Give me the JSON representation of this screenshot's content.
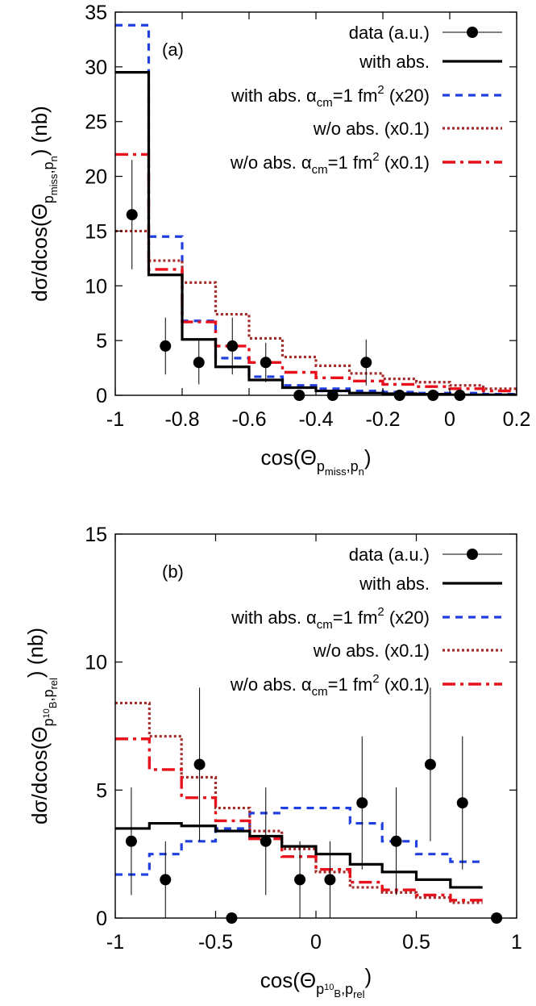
{
  "chart_data": [
    {
      "type": "step-histogram",
      "panel_label": "(a)",
      "xlabel": {
        "main": "cos(Θ",
        "sub": "p",
        "subsub": "miss",
        "sub2": ",p",
        "subsub2": "n",
        "end": ")"
      },
      "ylabel": {
        "main": "dσ/dcos(Θ",
        "sub": "p",
        "subsub": "miss",
        "sub2": ",p",
        "subsub2": "n",
        "end": ") (nb)"
      },
      "xlim": [
        -1,
        0.2
      ],
      "ylim": [
        0,
        35
      ],
      "xticks": [
        "-1",
        "-0.8",
        "-0.6",
        "-0.4",
        "-0.2",
        "0",
        "0.2"
      ],
      "xtick_values": [
        -1,
        -0.8,
        -0.6,
        -0.4,
        -0.2,
        0,
        0.2
      ],
      "yticks": [
        "0",
        "5",
        "10",
        "15",
        "20",
        "25",
        "30",
        "35"
      ],
      "ytick_values": [
        0,
        5,
        10,
        15,
        20,
        25,
        30,
        35
      ],
      "bin_edges": [
        -1,
        -0.9,
        -0.8,
        -0.7,
        -0.6,
        -0.5,
        -0.4,
        -0.3,
        -0.2,
        -0.1,
        0,
        0.1,
        0.2
      ],
      "series": [
        {
          "name": "with abs. α_cm=1 fm^2 (x20)",
          "legend_index": 2,
          "color": "#1f3fe0",
          "dash": "blue-dash",
          "values": [
            33.8,
            14.5,
            6.8,
            3.4,
            1.7,
            0.9,
            0.6,
            0.4,
            0.3,
            0.2,
            0.2,
            0.1
          ]
        },
        {
          "name": "w/o abs. (x0.1)",
          "legend_index": 3,
          "color": "#a52a2a",
          "dash": "brown-dot",
          "values": [
            15.0,
            12.3,
            10.3,
            7.4,
            5.2,
            3.5,
            2.7,
            2.0,
            1.5,
            1.2,
            0.9,
            0.6
          ]
        },
        {
          "name": "w/o abs. α_cm=1 fm^2 (x0.1)",
          "legend_index": 4,
          "color": "#e8101a",
          "dash": "red-dashdot",
          "values": [
            22.0,
            11.5,
            6.7,
            4.5,
            3.0,
            2.1,
            1.6,
            1.3,
            1.0,
            0.8,
            0.6,
            0.4
          ]
        },
        {
          "name": "with abs.",
          "legend_index": 1,
          "color": "#000000",
          "dash": "solid",
          "values": [
            29.5,
            11.0,
            5.1,
            2.6,
            1.4,
            0.7,
            0.4,
            0.2,
            0.15,
            0.1,
            0.05,
            0.05
          ]
        }
      ],
      "data_points": {
        "name": "data (a.u.)",
        "legend_index": 0,
        "x": [
          -0.95,
          -0.85,
          -0.75,
          -0.65,
          -0.55,
          -0.45,
          -0.35,
          -0.25,
          -0.15,
          -0.05,
          0.03
        ],
        "y": [
          16.5,
          4.5,
          3.0,
          4.5,
          3.0,
          0.0,
          0.0,
          3.0,
          0.0,
          0.0,
          0.0
        ],
        "err": [
          5.0,
          2.6,
          2.0,
          2.6,
          1.8,
          0.0,
          0.0,
          2.1,
          0.0,
          0.0,
          0.0
        ]
      },
      "legend_labels": [
        {
          "text": "data (a.u.)"
        },
        {
          "text": "with abs."
        },
        {
          "text": "with abs. α",
          "sub": "cm",
          "rest": "=1 fm",
          "sup": "2",
          "end": " (x20)"
        },
        {
          "text": "w/o abs. (x0.1)"
        },
        {
          "text": "w/o abs. α",
          "sub": "cm",
          "rest": "=1 fm",
          "sup": "2",
          "end": " (x0.1)"
        }
      ],
      "legend_position": "top-right",
      "grid": false
    },
    {
      "type": "step-histogram",
      "panel_label": "(b)",
      "xlabel": {
        "main": "cos(Θ",
        "sub": "p",
        "subsub": "10",
        "subsubB": "B",
        "sub2": ",p",
        "subsub2": "rel",
        "end": ")"
      },
      "ylabel": {
        "main": "dσ/dcos(Θ",
        "sub": "p",
        "subsub": "10",
        "subsubB": "B",
        "sub2": ",p",
        "subsub2": "rel",
        "end": ") (nb)"
      },
      "xlim": [
        -1,
        1
      ],
      "ylim": [
        0,
        15
      ],
      "xticks": [
        "-1",
        "-0.5",
        "0",
        "0.5",
        "1"
      ],
      "xtick_values": [
        -1,
        -0.5,
        0,
        0.5,
        1
      ],
      "yticks": [
        "0",
        "5",
        "10",
        "15"
      ],
      "ytick_values": [
        0,
        5,
        10,
        15
      ],
      "bin_edges": [
        -1,
        -0.83,
        -0.67,
        -0.5,
        -0.33,
        -0.17,
        0,
        0.17,
        0.33,
        0.5,
        0.67,
        0.83
      ],
      "series": [
        {
          "name": "with abs. α_cm=1 fm^2 (x20)",
          "legend_index": 2,
          "color": "#1f3fe0",
          "dash": "blue-dash",
          "values": [
            1.7,
            2.5,
            3.0,
            3.5,
            4.1,
            4.3,
            4.3,
            3.7,
            3.0,
            2.5,
            2.2
          ]
        },
        {
          "name": "w/o abs. (x0.1)",
          "legend_index": 3,
          "color": "#a52a2a",
          "dash": "brown-dot",
          "values": [
            8.4,
            7.1,
            5.5,
            4.3,
            3.4,
            2.7,
            1.8,
            1.2,
            1.0,
            0.8,
            0.6
          ]
        },
        {
          "name": "w/o abs. α_cm=1 fm^2 (x0.1)",
          "legend_index": 4,
          "color": "#e8101a",
          "dash": "red-dashdot",
          "values": [
            7.0,
            5.8,
            4.7,
            3.8,
            3.1,
            2.4,
            1.9,
            1.4,
            1.1,
            0.9,
            0.7
          ]
        },
        {
          "name": "with abs.",
          "legend_index": 1,
          "color": "#000000",
          "dash": "solid",
          "values": [
            3.5,
            3.7,
            3.6,
            3.4,
            3.2,
            2.8,
            2.5,
            2.1,
            1.8,
            1.5,
            1.2
          ]
        }
      ],
      "data_points": {
        "name": "data (a.u.)",
        "legend_index": 0,
        "x": [
          -0.92,
          -0.75,
          -0.58,
          -0.42,
          -0.25,
          -0.08,
          0.07,
          0.23,
          0.4,
          0.57,
          0.73,
          0.9
        ],
        "y": [
          3.0,
          1.5,
          6.0,
          0.0,
          3.0,
          1.5,
          1.5,
          4.5,
          3.0,
          6.0,
          4.5,
          0.0
        ],
        "err": [
          2.1,
          1.5,
          3.0,
          0.0,
          2.1,
          1.5,
          1.5,
          2.6,
          2.1,
          3.0,
          2.6,
          0.0
        ]
      },
      "legend_labels": [
        {
          "text": "data (a.u.)"
        },
        {
          "text": "with abs."
        },
        {
          "text": "with abs. α",
          "sub": "cm",
          "rest": "=1 fm",
          "sup": "2",
          "end": " (x20)"
        },
        {
          "text": "w/o abs. (x0.1)"
        },
        {
          "text": "w/o abs. α",
          "sub": "cm",
          "rest": "=1 fm",
          "sup": "2",
          "end": " (x0.1)"
        }
      ],
      "legend_position": "top-right",
      "grid": false
    }
  ]
}
